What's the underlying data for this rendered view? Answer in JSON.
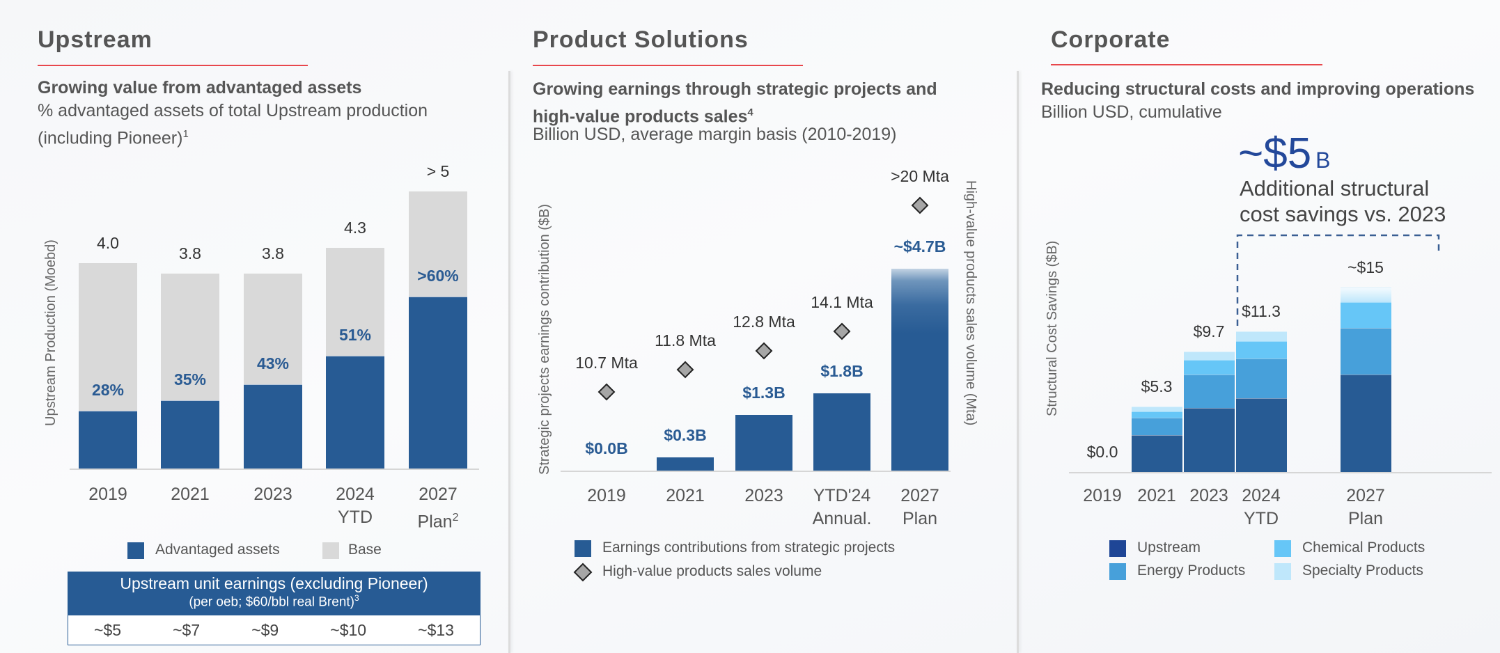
{
  "sections": {
    "upstream": {
      "title": "Upstream",
      "subtitle_bold": "Growing value from advantaged assets",
      "subtitle_line1": "% advantaged assets of total Upstream production",
      "subtitle_line2": "(including Pioneer)",
      "subtitle_sup": "1",
      "axis_label": "Upstream Production (Moebd)",
      "legend": [
        {
          "label": "Advantaged assets",
          "color": "#275b94"
        },
        {
          "label": "Base",
          "color": "#d9d9d9"
        }
      ],
      "table": {
        "header_line1": "Upstream unit earnings (excluding Pioneer)",
        "header_line2": "(per oeb; $60/bbl real Brent)",
        "header_sup": "3",
        "values": [
          "~$5",
          "~$7",
          "~$9",
          "~$10",
          "~$13"
        ]
      }
    },
    "product": {
      "title": "Product Solutions",
      "subtitle_bold_line1": "Growing earnings through strategic projects and",
      "subtitle_bold_line2": "high-value products sales",
      "subtitle_sup": "4",
      "subtitle": "Billion USD, average margin basis (2010-2019)",
      "axis_left": "Strategic projects earnings contribution ($B)",
      "axis_right": "High-value products sales volume (Mta)",
      "legend": [
        {
          "label": "Earnings contributions from strategic projects",
          "color": "#275b94"
        },
        {
          "label": "High-value products sales volume",
          "color": "#a6a6a6"
        }
      ]
    },
    "corporate": {
      "title": "Corporate",
      "subtitle_bold": "Reducing structural costs and improving operations",
      "subtitle": "Billion USD, cumulative",
      "axis_label": "Structural Cost Savings ($B)",
      "callout_value": "~$5",
      "callout_unit": "B",
      "callout_line1": "Additional structural",
      "callout_line2": "cost savings vs. 2023"
    }
  },
  "chart_data": [
    {
      "type": "bar",
      "stacked": true,
      "title": "Upstream Production",
      "ylabel": "Upstream Production (Moebd)",
      "categories": [
        [
          "2019"
        ],
        [
          "2021"
        ],
        [
          "2023"
        ],
        [
          "2024",
          "YTD"
        ],
        [
          "2027",
          "Plan"
        ]
      ],
      "category_sup": [
        "",
        "",
        "",
        "",
        "2"
      ],
      "totals": [
        4.0,
        3.8,
        3.8,
        4.3,
        5.4
      ],
      "total_labels": [
        "4.0",
        "3.8",
        "3.8",
        "4.3",
        "> 5"
      ],
      "advantaged_share": [
        0.28,
        0.35,
        0.43,
        0.51,
        0.62
      ],
      "share_labels": [
        "28%",
        "35%",
        "43%",
        "51%",
        ">60%"
      ],
      "series": [
        {
          "name": "Advantaged assets",
          "color": "#275b94"
        },
        {
          "name": "Base",
          "color": "#d9d9d9"
        }
      ],
      "ylim": [
        0,
        5.5
      ]
    },
    {
      "type": "bar",
      "title": "Strategic projects earnings & high-value products sales",
      "ylabel": "Strategic projects earnings contribution ($B)",
      "y2label": "High-value products sales volume (Mta)",
      "categories": [
        [
          "2019"
        ],
        [
          "2021"
        ],
        [
          "2023"
        ],
        [
          "YTD'24",
          "Annual."
        ],
        [
          "2027",
          "Plan"
        ]
      ],
      "earnings": [
        0.0,
        0.3,
        1.3,
        1.8,
        4.7
      ],
      "earnings_labels": [
        "$0.0B",
        "$0.3B",
        "$1.3B",
        "$1.8B",
        "~$4.7B"
      ],
      "volume": [
        10.7,
        11.8,
        12.8,
        14.1,
        20
      ],
      "volume_labels": [
        "10.7 Mta",
        "11.8 Mta",
        "12.8 Mta",
        "14.1 Mta",
        ">20 Mta"
      ],
      "series": [
        {
          "name": "Earnings contributions from strategic projects",
          "color": "#275b94",
          "kind": "bar"
        },
        {
          "name": "High-value products sales volume",
          "color": "#a6a6a6",
          "kind": "diamond"
        }
      ],
      "ylim": [
        0,
        5
      ],
      "y2lim": [
        0,
        25
      ]
    },
    {
      "type": "bar",
      "stacked": true,
      "title": "Structural Cost Savings",
      "ylabel": "Structural Cost Savings ($B)",
      "categories": [
        [
          "2019"
        ],
        [
          "2021"
        ],
        [
          "2023"
        ],
        [
          "2024",
          "YTD"
        ],
        [
          "2027",
          "Plan"
        ]
      ],
      "total_labels": [
        "$0.0",
        "$5.3",
        "$9.7",
        "$11.3",
        "~$15"
      ],
      "series": [
        {
          "name": "Upstream",
          "color": "#275b94",
          "legend_color": "#1f4696",
          "values": [
            0,
            3.0,
            5.2,
            6.0,
            7.9
          ]
        },
        {
          "name": "Energy Products",
          "color": "#47a0da",
          "values": [
            0,
            1.4,
            2.7,
            3.2,
            3.8
          ]
        },
        {
          "name": "Chemical Products",
          "color": "#66c6f7",
          "values": [
            0,
            0.5,
            1.2,
            1.4,
            2.1
          ]
        },
        {
          "name": "Specialty Products",
          "color": "#bfe7fb",
          "values": [
            0,
            0.4,
            0.7,
            0.8,
            1.2
          ]
        }
      ],
      "annotation": "~$5B Additional structural cost savings vs. 2023",
      "ylim": [
        0,
        16
      ]
    }
  ]
}
